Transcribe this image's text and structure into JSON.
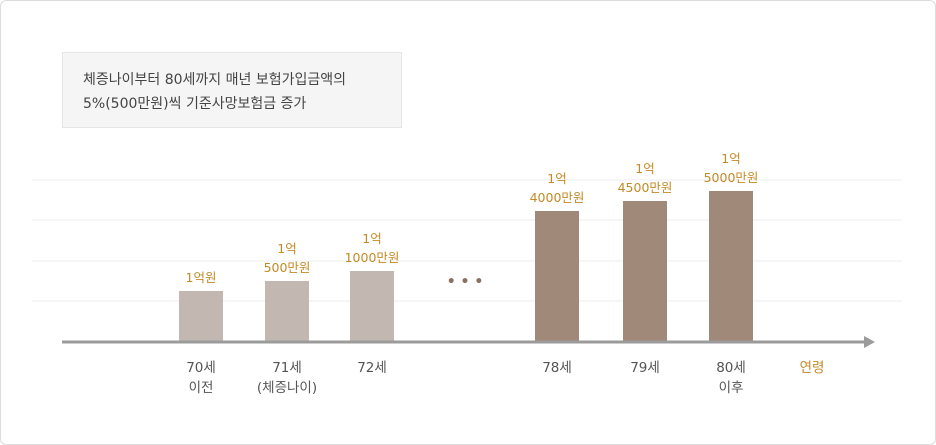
{
  "note": {
    "line1": "체증나이부터 80세까지 매년 보험가입금액의",
    "line2": "5%(500만원)씩 기준사망보험금 증가"
  },
  "chart_data": {
    "type": "bar",
    "categories": [
      [
        "70세",
        "이전"
      ],
      [
        "71세",
        "(체증나이)"
      ],
      [
        "72세"
      ],
      [
        "78세"
      ],
      [
        "79세"
      ],
      [
        "80세",
        "이후"
      ]
    ],
    "values": [
      10000,
      10500,
      11000,
      14000,
      14500,
      15000
    ],
    "unit": "만원",
    "value_labels": [
      [
        "1억원"
      ],
      [
        "1억",
        "500만원"
      ],
      [
        "1억",
        "1000만원"
      ],
      [
        "1억",
        "4000만원"
      ],
      [
        "1억",
        "4500만원"
      ],
      [
        "1억",
        "5000만원"
      ]
    ],
    "gap_marker": "• • •",
    "xlabel": "연령",
    "ylabel": "",
    "grid": true,
    "colors": {
      "early_bars": "#c3b8b1",
      "late_bars": "#a08979",
      "axis": "#9b9b9b",
      "grid": "#ececec",
      "value_label": "#c48a25",
      "axis_label": "#c48a25"
    }
  }
}
